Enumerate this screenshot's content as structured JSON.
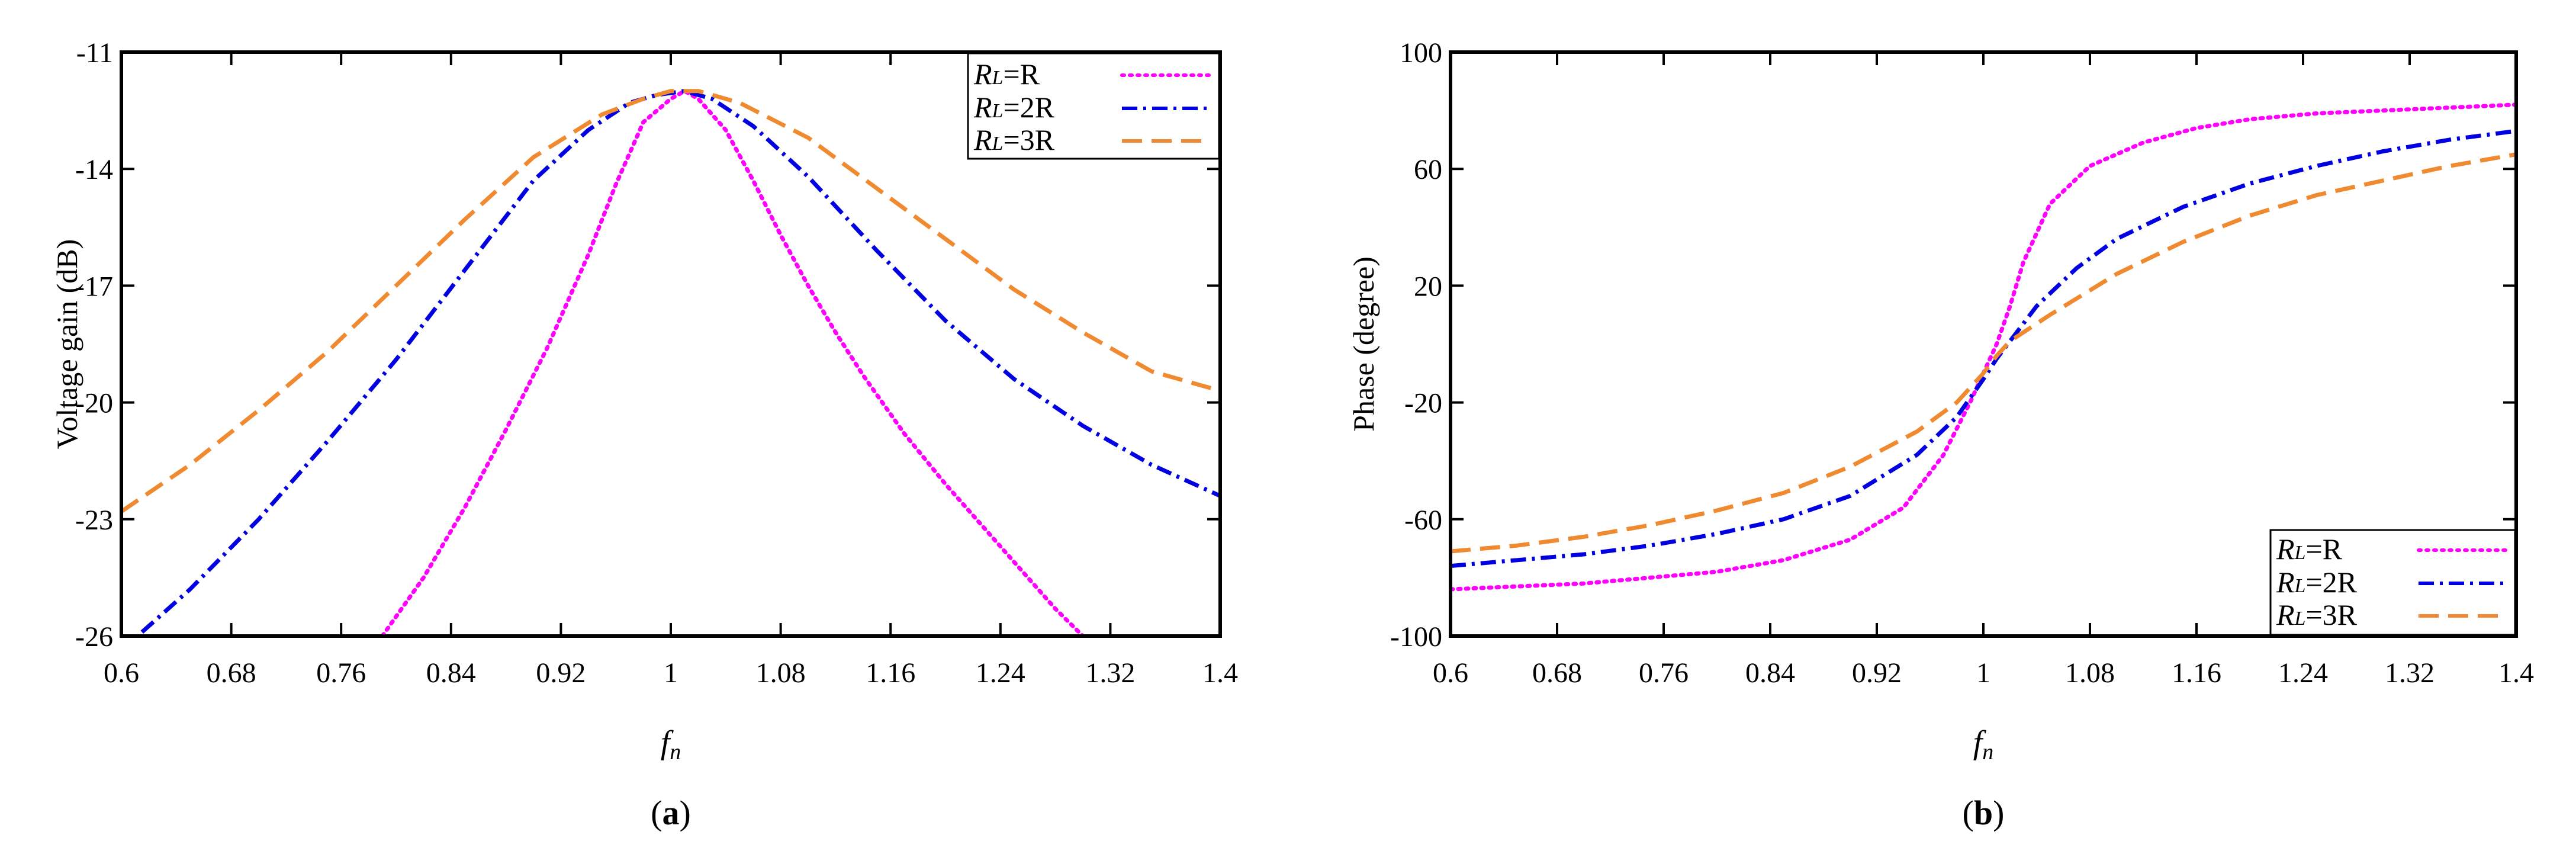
{
  "chart_data": [
    {
      "type": "line",
      "panel_label": "(a)",
      "panel_letter": "a",
      "xlabel": "fn",
      "xlabel_main": "f",
      "xlabel_sub": "n",
      "ylabel": "Voltage gain (dB)",
      "xlim": [
        0.6,
        1.4
      ],
      "ylim": [
        -26,
        -11
      ],
      "xticks": [
        "0.6",
        "0.68",
        "0.76",
        "0.84",
        "0.92",
        "1",
        "1.08",
        "1.16",
        "1.24",
        "1.32",
        "1.4"
      ],
      "yticks": [
        "-26",
        "-23",
        "-20",
        "-17",
        "-14",
        "-11"
      ],
      "legend_position": "top-right",
      "series": [
        {
          "name": "RL=R",
          "legend_main": "R",
          "legend_sub": "L",
          "legend_suffix": "=R",
          "color": "#ff00ff",
          "style": "dotted",
          "x": [
            0.79,
            0.82,
            0.85,
            0.88,
            0.91,
            0.94,
            0.96,
            0.98,
            1.0,
            1.01,
            1.02,
            1.04,
            1.06,
            1.08,
            1.1,
            1.12,
            1.14,
            1.17,
            1.2,
            1.23,
            1.26,
            1.28,
            1.3
          ],
          "y": [
            -26.0,
            -24.5,
            -22.7,
            -20.7,
            -18.6,
            -16.2,
            -14.4,
            -12.8,
            -12.2,
            -12.0,
            -12.2,
            -13.0,
            -14.3,
            -15.7,
            -17.0,
            -18.2,
            -19.3,
            -20.8,
            -22.1,
            -23.3,
            -24.5,
            -25.3,
            -26.0
          ]
        },
        {
          "name": "RL=2R",
          "legend_main": "R",
          "legend_sub": "L",
          "legend_suffix": "=2R",
          "color": "#0000e0",
          "style": "dashdot",
          "x": [
            0.615,
            0.65,
            0.7,
            0.75,
            0.8,
            0.85,
            0.9,
            0.94,
            0.97,
            0.99,
            1.01,
            1.03,
            1.06,
            1.1,
            1.15,
            1.2,
            1.25,
            1.3,
            1.35,
            1.4
          ],
          "y": [
            -25.9,
            -24.8,
            -23.0,
            -21.0,
            -18.9,
            -16.6,
            -14.3,
            -13.0,
            -12.3,
            -12.1,
            -12.0,
            -12.2,
            -12.9,
            -14.2,
            -16.1,
            -17.9,
            -19.4,
            -20.6,
            -21.6,
            -22.4
          ]
        },
        {
          "name": "RL=3R",
          "legend_main": "R",
          "legend_sub": "L",
          "legend_suffix": "=3R",
          "color": "#f08a30",
          "style": "dashed",
          "x": [
            0.6,
            0.65,
            0.7,
            0.75,
            0.8,
            0.85,
            0.9,
            0.95,
            0.98,
            1.0,
            1.02,
            1.05,
            1.1,
            1.15,
            1.2,
            1.25,
            1.3,
            1.35,
            1.4
          ],
          "y": [
            -22.8,
            -21.6,
            -20.2,
            -18.7,
            -17.0,
            -15.3,
            -13.7,
            -12.6,
            -12.2,
            -12.0,
            -12.0,
            -12.3,
            -13.2,
            -14.5,
            -15.8,
            -17.1,
            -18.2,
            -19.2,
            -19.7
          ]
        }
      ]
    },
    {
      "type": "line",
      "panel_label": "(b)",
      "panel_letter": "b",
      "xlabel": "fn",
      "xlabel_main": "f",
      "xlabel_sub": "n",
      "ylabel": "Phase (degree)",
      "xlim": [
        0.6,
        1.4
      ],
      "ylim": [
        -100,
        100
      ],
      "xticks": [
        "0.6",
        "0.68",
        "0.76",
        "0.84",
        "0.92",
        "1",
        "1.08",
        "1.16",
        "1.24",
        "1.32",
        "1.4"
      ],
      "yticks": [
        "-100",
        "-60",
        "-20",
        "20",
        "60",
        "100"
      ],
      "legend_position": "bottom-right",
      "series": [
        {
          "name": "RL=R",
          "legend_main": "R",
          "legend_sub": "L",
          "legend_suffix": "=R",
          "color": "#ff00ff",
          "style": "dotted",
          "x": [
            0.6,
            0.65,
            0.7,
            0.75,
            0.8,
            0.85,
            0.9,
            0.94,
            0.97,
            0.99,
            1.0,
            1.01,
            1.02,
            1.03,
            1.05,
            1.08,
            1.12,
            1.16,
            1.2,
            1.25,
            1.3,
            1.35,
            1.4
          ],
          "y": [
            -84,
            -83,
            -82,
            -80,
            -78,
            -74,
            -67,
            -56,
            -38,
            -20,
            -10,
            0,
            13,
            28,
            48,
            61,
            69,
            74,
            77,
            79,
            80,
            81,
            82
          ]
        },
        {
          "name": "RL=2R",
          "legend_main": "R",
          "legend_sub": "L",
          "legend_suffix": "=2R",
          "color": "#0000e0",
          "style": "dashdot",
          "x": [
            0.6,
            0.65,
            0.7,
            0.75,
            0.8,
            0.85,
            0.9,
            0.95,
            0.98,
            1.0,
            1.01,
            1.02,
            1.04,
            1.07,
            1.1,
            1.15,
            1.2,
            1.25,
            1.3,
            1.35,
            1.4
          ],
          "y": [
            -76,
            -74,
            -72,
            -69,
            -65,
            -60,
            -52,
            -38,
            -25,
            -12,
            -5,
            1,
            13,
            26,
            36,
            47,
            55,
            61,
            66,
            70,
            73
          ]
        },
        {
          "name": "RL=3R",
          "legend_main": "R",
          "legend_sub": "L",
          "legend_suffix": "=3R",
          "color": "#f08a30",
          "style": "dashed",
          "x": [
            0.6,
            0.65,
            0.7,
            0.75,
            0.8,
            0.85,
            0.9,
            0.95,
            0.98,
            1.0,
            1.01,
            1.02,
            1.05,
            1.1,
            1.15,
            1.2,
            1.25,
            1.3,
            1.35,
            1.4
          ],
          "y": [
            -71,
            -69,
            -66,
            -62,
            -57,
            -51,
            -42,
            -30,
            -20,
            -10,
            -4,
            1,
            10,
            24,
            35,
            44,
            51,
            56,
            61,
            65
          ]
        }
      ]
    }
  ]
}
